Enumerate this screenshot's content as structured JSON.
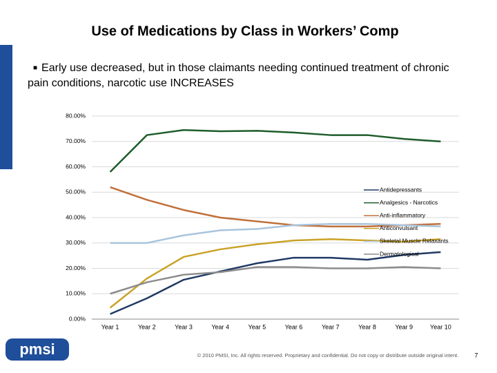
{
  "title": "Use of Medications by Class in Workers’ Comp",
  "bullet": "Early use decreased, but in those claimants needing continued treatment of chronic pain conditions, narcotic use INCREASES",
  "chart_data": {
    "type": "line",
    "categories": [
      "Year 1",
      "Year 2",
      "Year 3",
      "Year 4",
      "Year 5",
      "Year 6",
      "Year 7",
      "Year 8",
      "Year 9",
      "Year 10"
    ],
    "series": [
      {
        "name": "Antidepressants",
        "color": "#1f3864",
        "values": [
          2,
          8.2,
          15.5,
          18.8,
          22,
          24.2,
          24.2,
          23.4,
          25.3,
          26.4
        ]
      },
      {
        "name": "Analgesics - Narcotics",
        "color": "#1e5c2a",
        "values": [
          58,
          72.5,
          74.5,
          74,
          74.2,
          73.5,
          72.5,
          72.5,
          71,
          70
        ]
      },
      {
        "name": "Anti-inflammatory",
        "color": "#c0703a",
        "values": [
          52,
          47,
          43,
          40,
          38.5,
          37,
          36.5,
          36.5,
          37,
          37.5
        ]
      },
      {
        "name": "Anticonvulsant",
        "color": "#c9a227",
        "values": [
          4.5,
          16,
          24.5,
          27.5,
          29.5,
          31,
          31.5,
          31,
          30.5,
          31.5
        ]
      },
      {
        "name": "Skeletal Muscle Relaxants",
        "color": "#a9c4dc",
        "values": [
          30,
          30,
          33,
          35,
          35.5,
          37,
          37.5,
          37.5,
          37,
          36.5
        ]
      },
      {
        "name": "Dermatological",
        "color": "#8c8c8c",
        "values": [
          10,
          14.5,
          17.5,
          18.5,
          20.5,
          20.5,
          20,
          20,
          20.5,
          20
        ]
      }
    ],
    "ylim": [
      0,
      80
    ],
    "yticks": [
      {
        "value": 0,
        "label": "0.00%"
      },
      {
        "value": 10,
        "label": "10.00%"
      },
      {
        "value": 20,
        "label": "20.00%"
      },
      {
        "value": 30,
        "label": "30.00%"
      },
      {
        "value": 40,
        "label": "40.00%"
      },
      {
        "value": 50,
        "label": "50.00%"
      },
      {
        "value": 60,
        "label": "60.00%"
      },
      {
        "value": 70,
        "label": "70.00%"
      },
      {
        "value": 80,
        "label": "80.00%"
      }
    ],
    "grid": true
  },
  "footer": {
    "logo": "pmsi",
    "copyright": "© 2010 PMSI, Inc. All rights reserved. Proprietary and confidential. Do not copy or distribute outside original intent.",
    "page": "7"
  }
}
